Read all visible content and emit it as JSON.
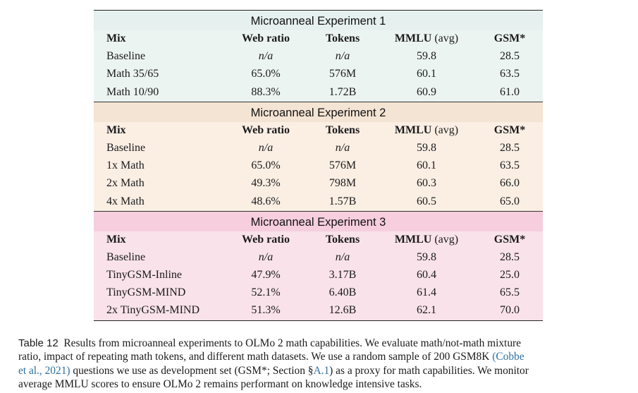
{
  "table": {
    "columns": {
      "mix": "Mix",
      "web_ratio": "Web ratio",
      "tokens": "Tokens",
      "mmlu": "MMLU",
      "mmlu_unit": "(avg)",
      "gsm": "GSM*"
    },
    "sections": [
      {
        "title": "Microanneal Experiment 1",
        "rows": [
          {
            "mix": "Baseline",
            "web_ratio": "n/a",
            "tokens": "n/a",
            "mmlu": "59.8",
            "gsm": "28.5"
          },
          {
            "mix": "Math 35/65",
            "web_ratio": "65.0%",
            "tokens": "576M",
            "mmlu": "60.1",
            "gsm": "63.5"
          },
          {
            "mix": "Math 10/90",
            "web_ratio": "88.3%",
            "tokens": "1.72B",
            "mmlu": "60.9",
            "gsm": "61.0"
          }
        ]
      },
      {
        "title": "Microanneal Experiment 2",
        "rows": [
          {
            "mix": "Baseline",
            "web_ratio": "n/a",
            "tokens": "n/a",
            "mmlu": "59.8",
            "gsm": "28.5"
          },
          {
            "mix": "1x Math",
            "web_ratio": "65.0%",
            "tokens": "576M",
            "mmlu": "60.1",
            "gsm": "63.5"
          },
          {
            "mix": "2x Math",
            "web_ratio": "49.3%",
            "tokens": "798M",
            "mmlu": "60.3",
            "gsm": "66.0"
          },
          {
            "mix": "4x Math",
            "web_ratio": "48.6%",
            "tokens": "1.57B",
            "mmlu": "60.5",
            "gsm": "65.0"
          }
        ]
      },
      {
        "title": "Microanneal Experiment 3",
        "rows": [
          {
            "mix": "Baseline",
            "web_ratio": "n/a",
            "tokens": "n/a",
            "mmlu": "59.8",
            "gsm": "28.5"
          },
          {
            "mix": "TinyGSM-Inline",
            "web_ratio": "47.9%",
            "tokens": "3.17B",
            "mmlu": "60.4",
            "gsm": "25.0"
          },
          {
            "mix": "TinyGSM-MIND",
            "web_ratio": "52.1%",
            "tokens": "6.40B",
            "mmlu": "61.4",
            "gsm": "65.5"
          },
          {
            "mix": "2x TinyGSM-MIND",
            "web_ratio": "51.3%",
            "tokens": "12.6B",
            "mmlu": "62.1",
            "gsm": "70.0"
          }
        ]
      }
    ]
  },
  "caption": {
    "label": "Table 12",
    "line1": "Results from microanneal experiments to OLMo 2 math capabilities. We evaluate math/not-math mixture",
    "line2": "ratio, impact of repeating math tokens, and different math datasets. We use a random sample of 200 GSM8K",
    "cite_1a": "(Cobbe",
    "cite_1b": "et al., 2021)",
    "line3": "questions we use as development set (GSM*; Section §",
    "section_ref": "A.1",
    "line3b": ") as a proxy for math capabilities. We monitor",
    "line4": "average MMLU scores to ensure OLMo 2 remains performant on knowledge intensive tasks."
  }
}
